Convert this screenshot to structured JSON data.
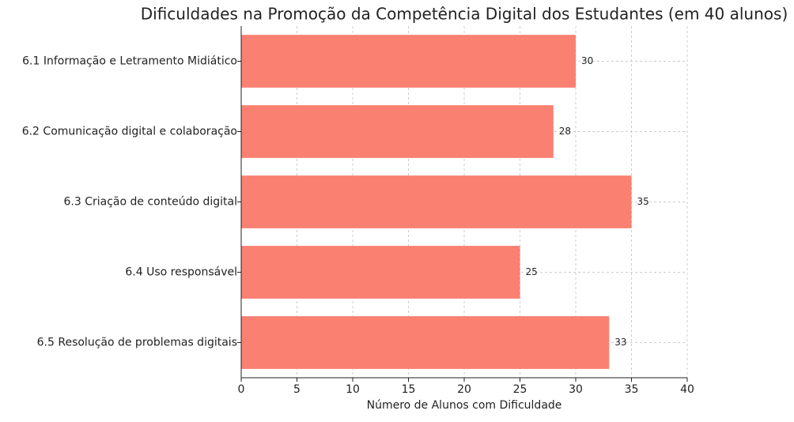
{
  "chart_data": {
    "type": "bar",
    "orientation": "horizontal",
    "title": "Dificuldades na Promoção da Competência Digital dos Estudantes (em 40 alunos)",
    "x_label": "Número de Alunos com Dificuldade",
    "categories": [
      "6.1 Informação e Letramento Midiático",
      "6.2 Comunicação digital e colaboração",
      "6.3 Criação de conteúdo digital",
      "6.4 Uso responsável",
      "6.5 Resolução de problemas digitais"
    ],
    "values": [
      30,
      28,
      35,
      25,
      33
    ],
    "color": "#fa8072",
    "xlim": [
      0,
      40
    ],
    "xticks": [
      0,
      5,
      10,
      15,
      20,
      25,
      30,
      35,
      40
    ],
    "grid": true
  }
}
